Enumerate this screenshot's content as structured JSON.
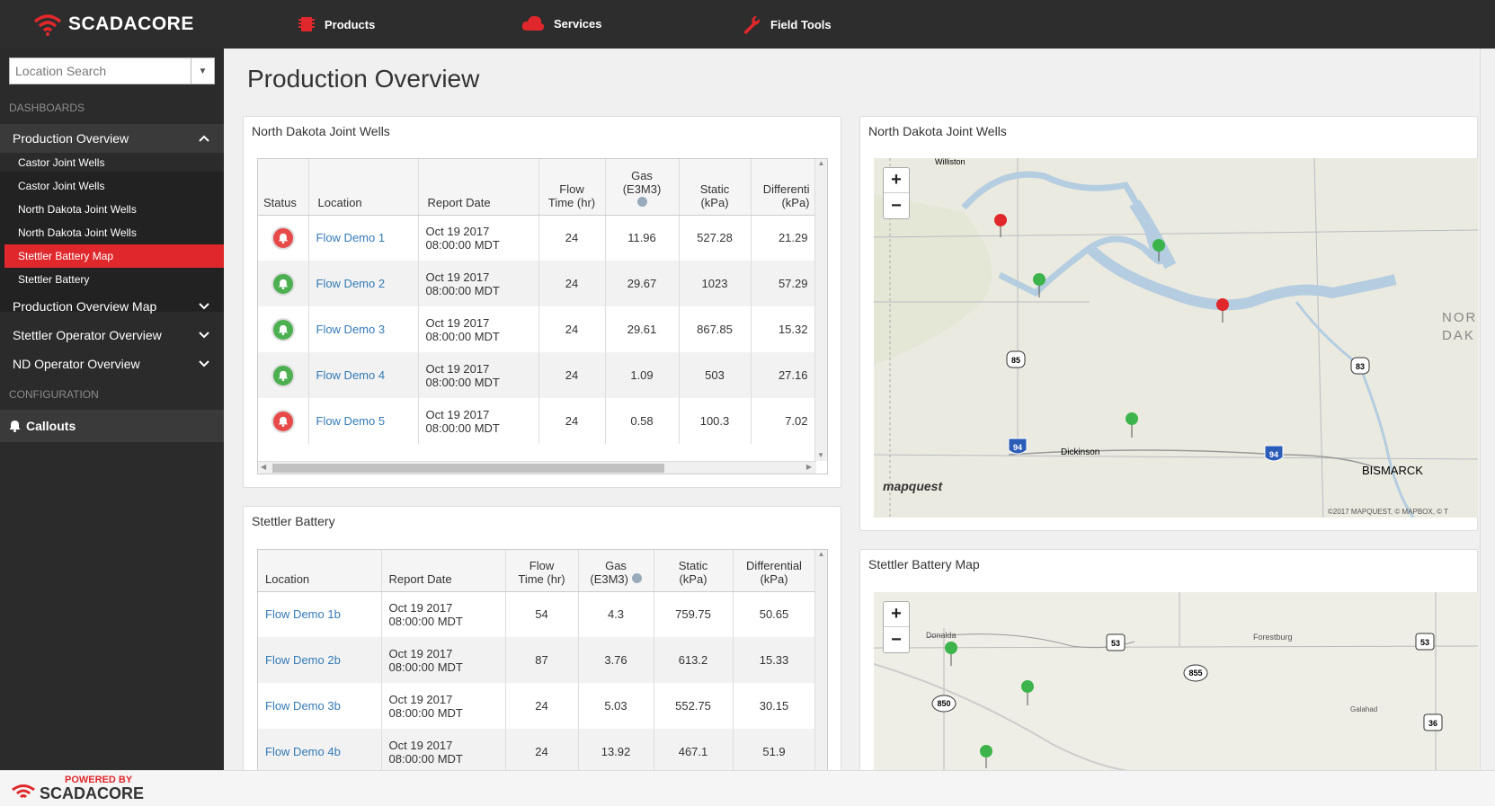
{
  "brand": {
    "name": "SCADACORE",
    "accent": "#e0282c"
  },
  "nav": [
    {
      "label": "Products",
      "icon": "chip-icon"
    },
    {
      "label": "Services",
      "icon": "cloud-icon"
    },
    {
      "label": "Field Tools",
      "icon": "wrench-icon"
    }
  ],
  "sidebar": {
    "search_placeholder": "Location Search",
    "dashboards_heading": "DASHBOARDS",
    "configuration_heading": "CONFIGURATION",
    "production_overview": "Production Overview",
    "sub_items": [
      "Castor Joint Wells",
      "Castor Joint Wells",
      "North Dakota Joint Wells",
      "North Dakota Joint Wells",
      "Stettler Battery Map",
      "Stettler Battery"
    ],
    "production_overview_map": "Production Overview Map",
    "stettler_operator_overview": "Stettler Operator Overview",
    "nd_operator_overview": "ND Operator Overview",
    "callouts": "Callouts"
  },
  "page_title": "Production Overview",
  "nd_wells": {
    "title": "North Dakota Joint Wells",
    "headers": {
      "status": "Status",
      "location": "Location",
      "report_date": "Report Date",
      "flow_time_1": "Flow",
      "flow_time_2": "Time (hr)",
      "gas_1": "Gas",
      "gas_2": "(E3M3)",
      "static_1": "Static",
      "static_2": "(kPa)",
      "diff_1": "Differenti",
      "diff_2": "(kPa)"
    },
    "rows": [
      {
        "status": "alarm",
        "location": "Flow Demo 1",
        "date": "Oct 19 2017",
        "time": "08:00:00 MDT",
        "flow": "24",
        "gas": "11.96",
        "static": "527.28",
        "diff": "21.29"
      },
      {
        "status": "ok",
        "location": "Flow Demo 2",
        "date": "Oct 19 2017",
        "time": "08:00:00 MDT",
        "flow": "24",
        "gas": "29.67",
        "static": "1023",
        "diff": "57.29"
      },
      {
        "status": "ok",
        "location": "Flow Demo 3",
        "date": "Oct 19 2017",
        "time": "08:00:00 MDT",
        "flow": "24",
        "gas": "29.61",
        "static": "867.85",
        "diff": "15.32"
      },
      {
        "status": "ok",
        "location": "Flow Demo 4",
        "date": "Oct 19 2017",
        "time": "08:00:00 MDT",
        "flow": "24",
        "gas": "1.09",
        "static": "503",
        "diff": "27.16"
      },
      {
        "status": "alarm",
        "location": "Flow Demo 5",
        "date": "Oct 19 2017",
        "time": "08:00:00 MDT",
        "flow": "24",
        "gas": "0.58",
        "static": "100.3",
        "diff": "7.02"
      }
    ]
  },
  "stettler": {
    "title": "Stettler Battery",
    "headers": {
      "location": "Location",
      "report_date": "Report Date",
      "flow_time_1": "Flow",
      "flow_time_2": "Time (hr)",
      "gas_1": "Gas",
      "gas_2": "(E3M3)",
      "static_1": "Static",
      "static_2": "(kPa)",
      "diff_1": "Differential",
      "diff_2": "(kPa)"
    },
    "rows": [
      {
        "location": "Flow Demo 1b",
        "date": "Oct 19 2017",
        "time": "08:00:00 MDT",
        "flow": "54",
        "gas": "4.3",
        "static": "759.75",
        "diff": "50.65"
      },
      {
        "location": "Flow Demo 2b",
        "date": "Oct 19 2017",
        "time": "08:00:00 MDT",
        "flow": "87",
        "gas": "3.76",
        "static": "613.2",
        "diff": "15.33"
      },
      {
        "location": "Flow Demo 3b",
        "date": "Oct 19 2017",
        "time": "08:00:00 MDT",
        "flow": "24",
        "gas": "5.03",
        "static": "552.75",
        "diff": "30.15"
      },
      {
        "location": "Flow Demo 4b",
        "date": "Oct 19 2017",
        "time": "08:00:00 MDT",
        "flow": "24",
        "gas": "13.92",
        "static": "467.1",
        "diff": "51.9"
      }
    ]
  },
  "nd_map": {
    "title": "North Dakota Joint Wells",
    "labels": {
      "williston": "Williston",
      "dickinson": "Dickinson",
      "bismarck": "BISMARCK",
      "north_dakota": "NOR",
      "dak": "DAK"
    },
    "shields": {
      "us85": "85",
      "us83": "83",
      "i94a": "94",
      "i94b": "94"
    },
    "attribution": "©2017 MAPQUEST, © MAPBOX, © T",
    "logo": "mapquest"
  },
  "stettler_map": {
    "title": "Stettler Battery Map",
    "labels": {
      "donalda": "Donalda",
      "forestburg": "Forestburg",
      "galahad": "Galahad"
    },
    "shields": {
      "h53a": "53",
      "h53b": "53",
      "h855": "855",
      "h850": "850",
      "h36": "36"
    }
  },
  "zoom": {
    "in": "+",
    "out": "−"
  },
  "footer": {
    "powered_by": "POWERED BY",
    "brand": "SCADACORE"
  }
}
